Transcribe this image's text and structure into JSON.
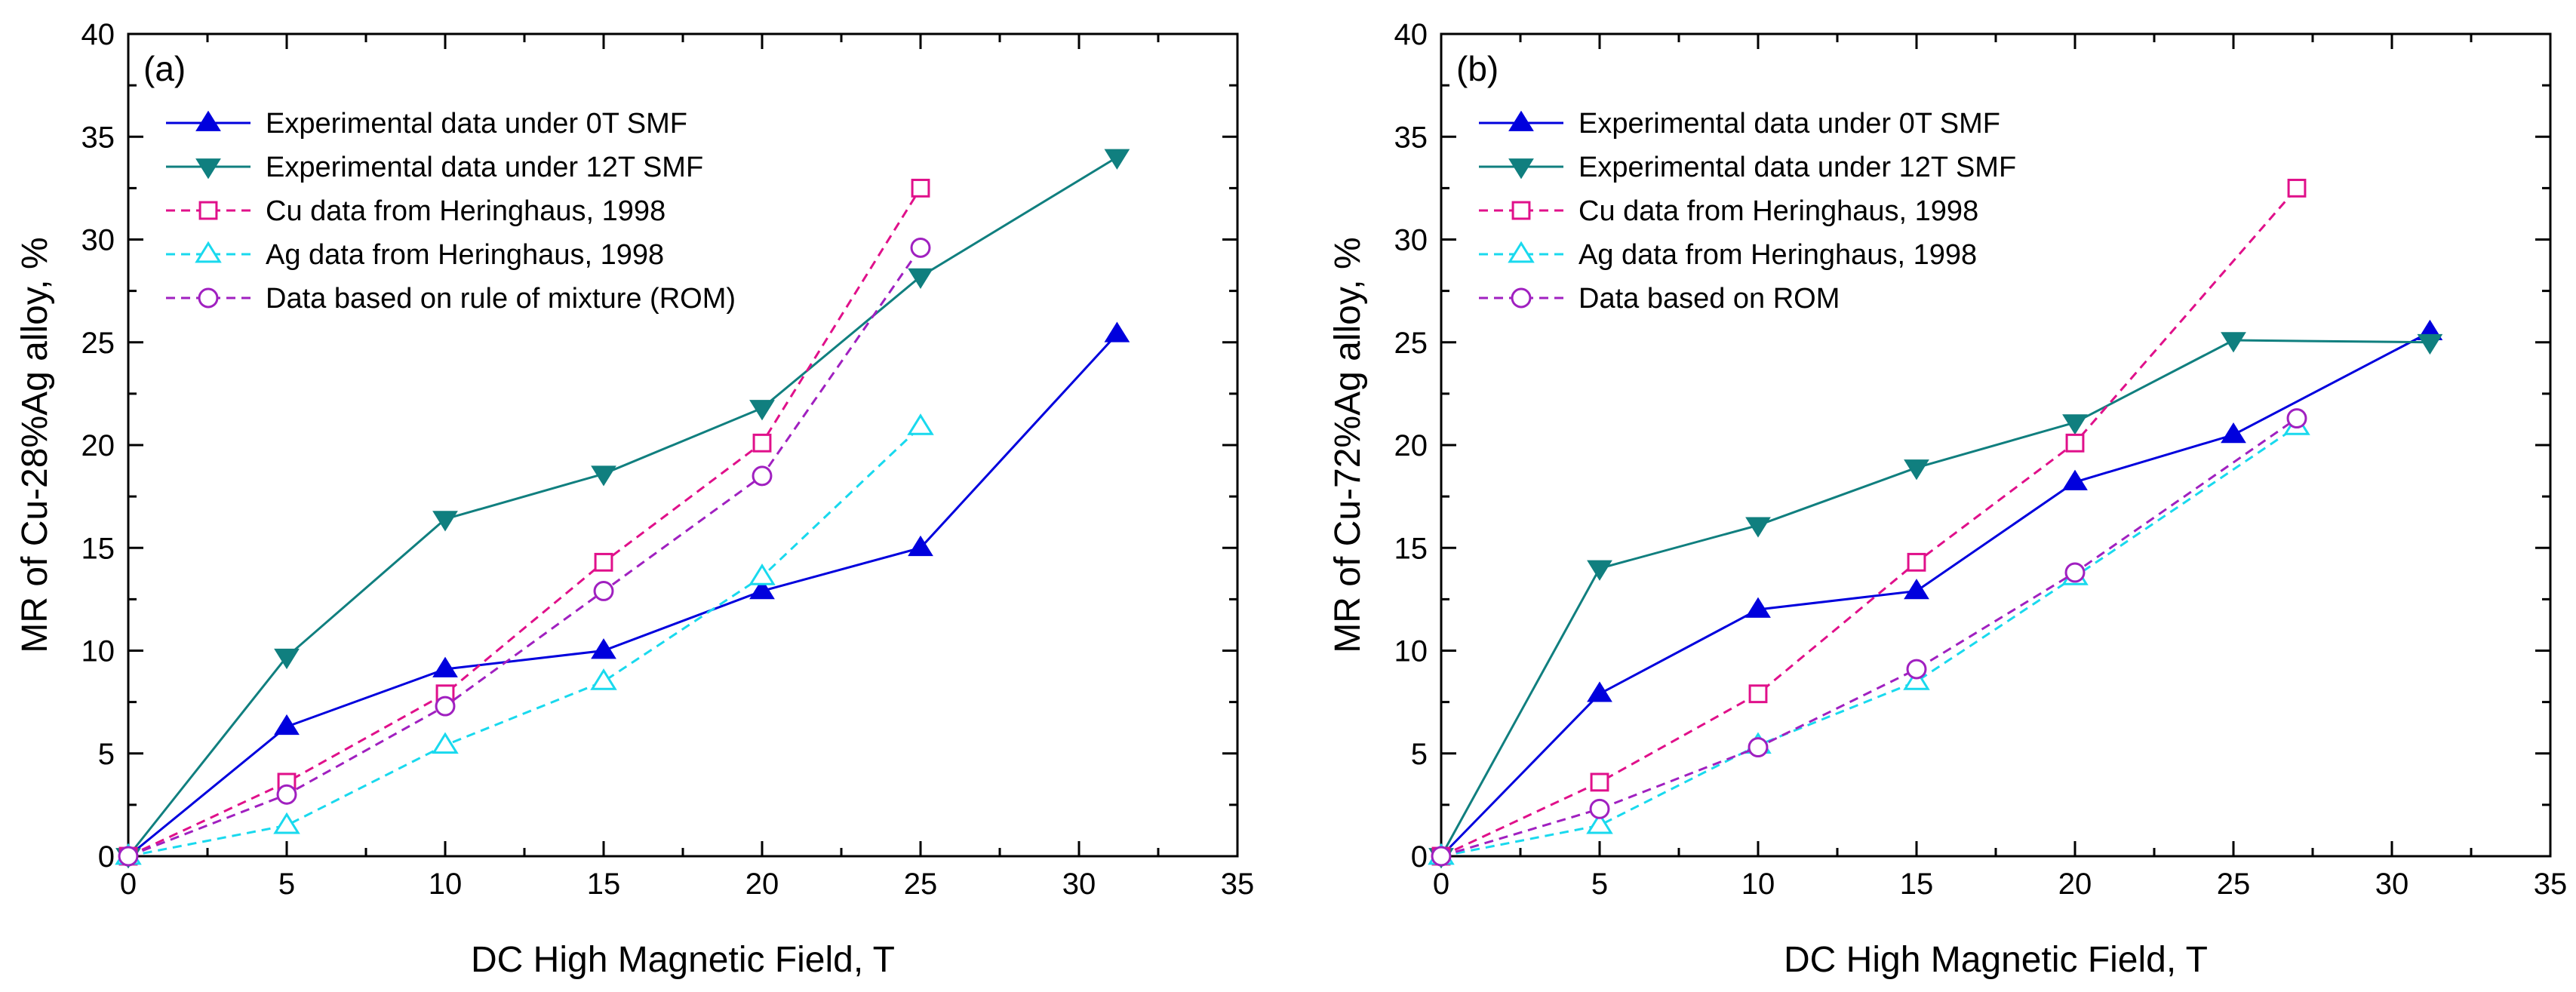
{
  "chart_data": [
    {
      "type": "line",
      "panel_label": "(a)",
      "xlabel": "DC High Magnetic Field, T",
      "ylabel": "MR of Cu-28%Ag alloy, %",
      "xlim": [
        0,
        35
      ],
      "ylim": [
        0,
        40
      ],
      "xticks": [
        0,
        5,
        10,
        15,
        20,
        25,
        30,
        35
      ],
      "yticks": [
        0,
        5,
        10,
        15,
        20,
        25,
        30,
        35,
        40
      ],
      "legend_position": "top-left",
      "series": [
        {
          "name": "Experimental data under 0T SMF",
          "color": "#0000dd",
          "dash": "solid",
          "marker": "triangle-up-filled",
          "x": [
            0,
            5,
            10,
            15,
            20,
            25,
            31.2
          ],
          "y": [
            0,
            6.3,
            9.1,
            10.0,
            12.9,
            15.0,
            25.4
          ]
        },
        {
          "name": "Experimental data under 12T SMF",
          "color": "#107f7f",
          "dash": "solid",
          "marker": "triangle-down-filled",
          "x": [
            0,
            5,
            10,
            15,
            20,
            25,
            31.2
          ],
          "y": [
            0,
            9.7,
            16.4,
            18.6,
            21.8,
            28.2,
            34.0
          ]
        },
        {
          "name": "Cu data from Heringhaus, 1998",
          "color": "#e0108a",
          "dash": "dashed",
          "marker": "square-open",
          "x": [
            0,
            5,
            10,
            15,
            20,
            25
          ],
          "y": [
            0,
            3.6,
            7.9,
            14.3,
            20.1,
            32.5
          ]
        },
        {
          "name": "Ag data from Heringhaus, 1998",
          "color": "#19d9ee",
          "dash": "dashed",
          "marker": "triangle-up-open",
          "x": [
            0,
            5,
            10,
            15,
            20,
            25
          ],
          "y": [
            0,
            1.5,
            5.4,
            8.5,
            13.6,
            20.9
          ]
        },
        {
          "name": "Data based on rule of mixture (ROM)",
          "color": "#a020c0",
          "dash": "dashed",
          "marker": "circle-open",
          "x": [
            0,
            5,
            10,
            15,
            20,
            25
          ],
          "y": [
            0,
            3.0,
            7.3,
            12.9,
            18.5,
            29.6
          ]
        }
      ]
    },
    {
      "type": "line",
      "panel_label": "(b)",
      "xlabel": "DC High Magnetic Field, T",
      "ylabel": "MR of Cu-72%Ag alloy, %",
      "xlim": [
        0,
        35
      ],
      "ylim": [
        0,
        40
      ],
      "xticks": [
        0,
        5,
        10,
        15,
        20,
        25,
        30,
        35
      ],
      "yticks": [
        0,
        5,
        10,
        15,
        20,
        25,
        30,
        35,
        40
      ],
      "legend_position": "top-left",
      "series": [
        {
          "name": "Experimental data under 0T SMF",
          "color": "#0000dd",
          "dash": "solid",
          "marker": "triangle-up-filled",
          "x": [
            0,
            5,
            10,
            15,
            20,
            25,
            31.2
          ],
          "y": [
            0,
            7.9,
            12.0,
            12.9,
            18.2,
            20.5,
            25.5
          ]
        },
        {
          "name": "Experimental data under 12T SMF",
          "color": "#107f7f",
          "dash": "solid",
          "marker": "triangle-down-filled",
          "x": [
            0,
            5,
            10,
            15,
            20,
            25,
            31.2
          ],
          "y": [
            0,
            14.0,
            16.1,
            18.9,
            21.1,
            25.1,
            25.0
          ]
        },
        {
          "name": "Cu data from Heringhaus, 1998",
          "color": "#e0108a",
          "dash": "dashed",
          "marker": "square-open",
          "x": [
            0,
            5,
            10,
            15,
            20,
            27
          ],
          "y": [
            0,
            3.6,
            7.9,
            14.3,
            20.1,
            32.5
          ]
        },
        {
          "name": "Ag data from Heringhaus, 1998",
          "color": "#19d9ee",
          "dash": "dashed",
          "marker": "triangle-up-open",
          "x": [
            0,
            5,
            10,
            15,
            20,
            27
          ],
          "y": [
            0,
            1.5,
            5.4,
            8.5,
            13.6,
            20.9
          ]
        },
        {
          "name": "Data based on ROM",
          "color": "#a020c0",
          "dash": "dashed",
          "marker": "circle-open",
          "x": [
            0,
            5,
            10,
            15,
            20,
            27
          ],
          "y": [
            0,
            2.3,
            5.3,
            9.1,
            13.8,
            21.3
          ]
        }
      ]
    }
  ]
}
